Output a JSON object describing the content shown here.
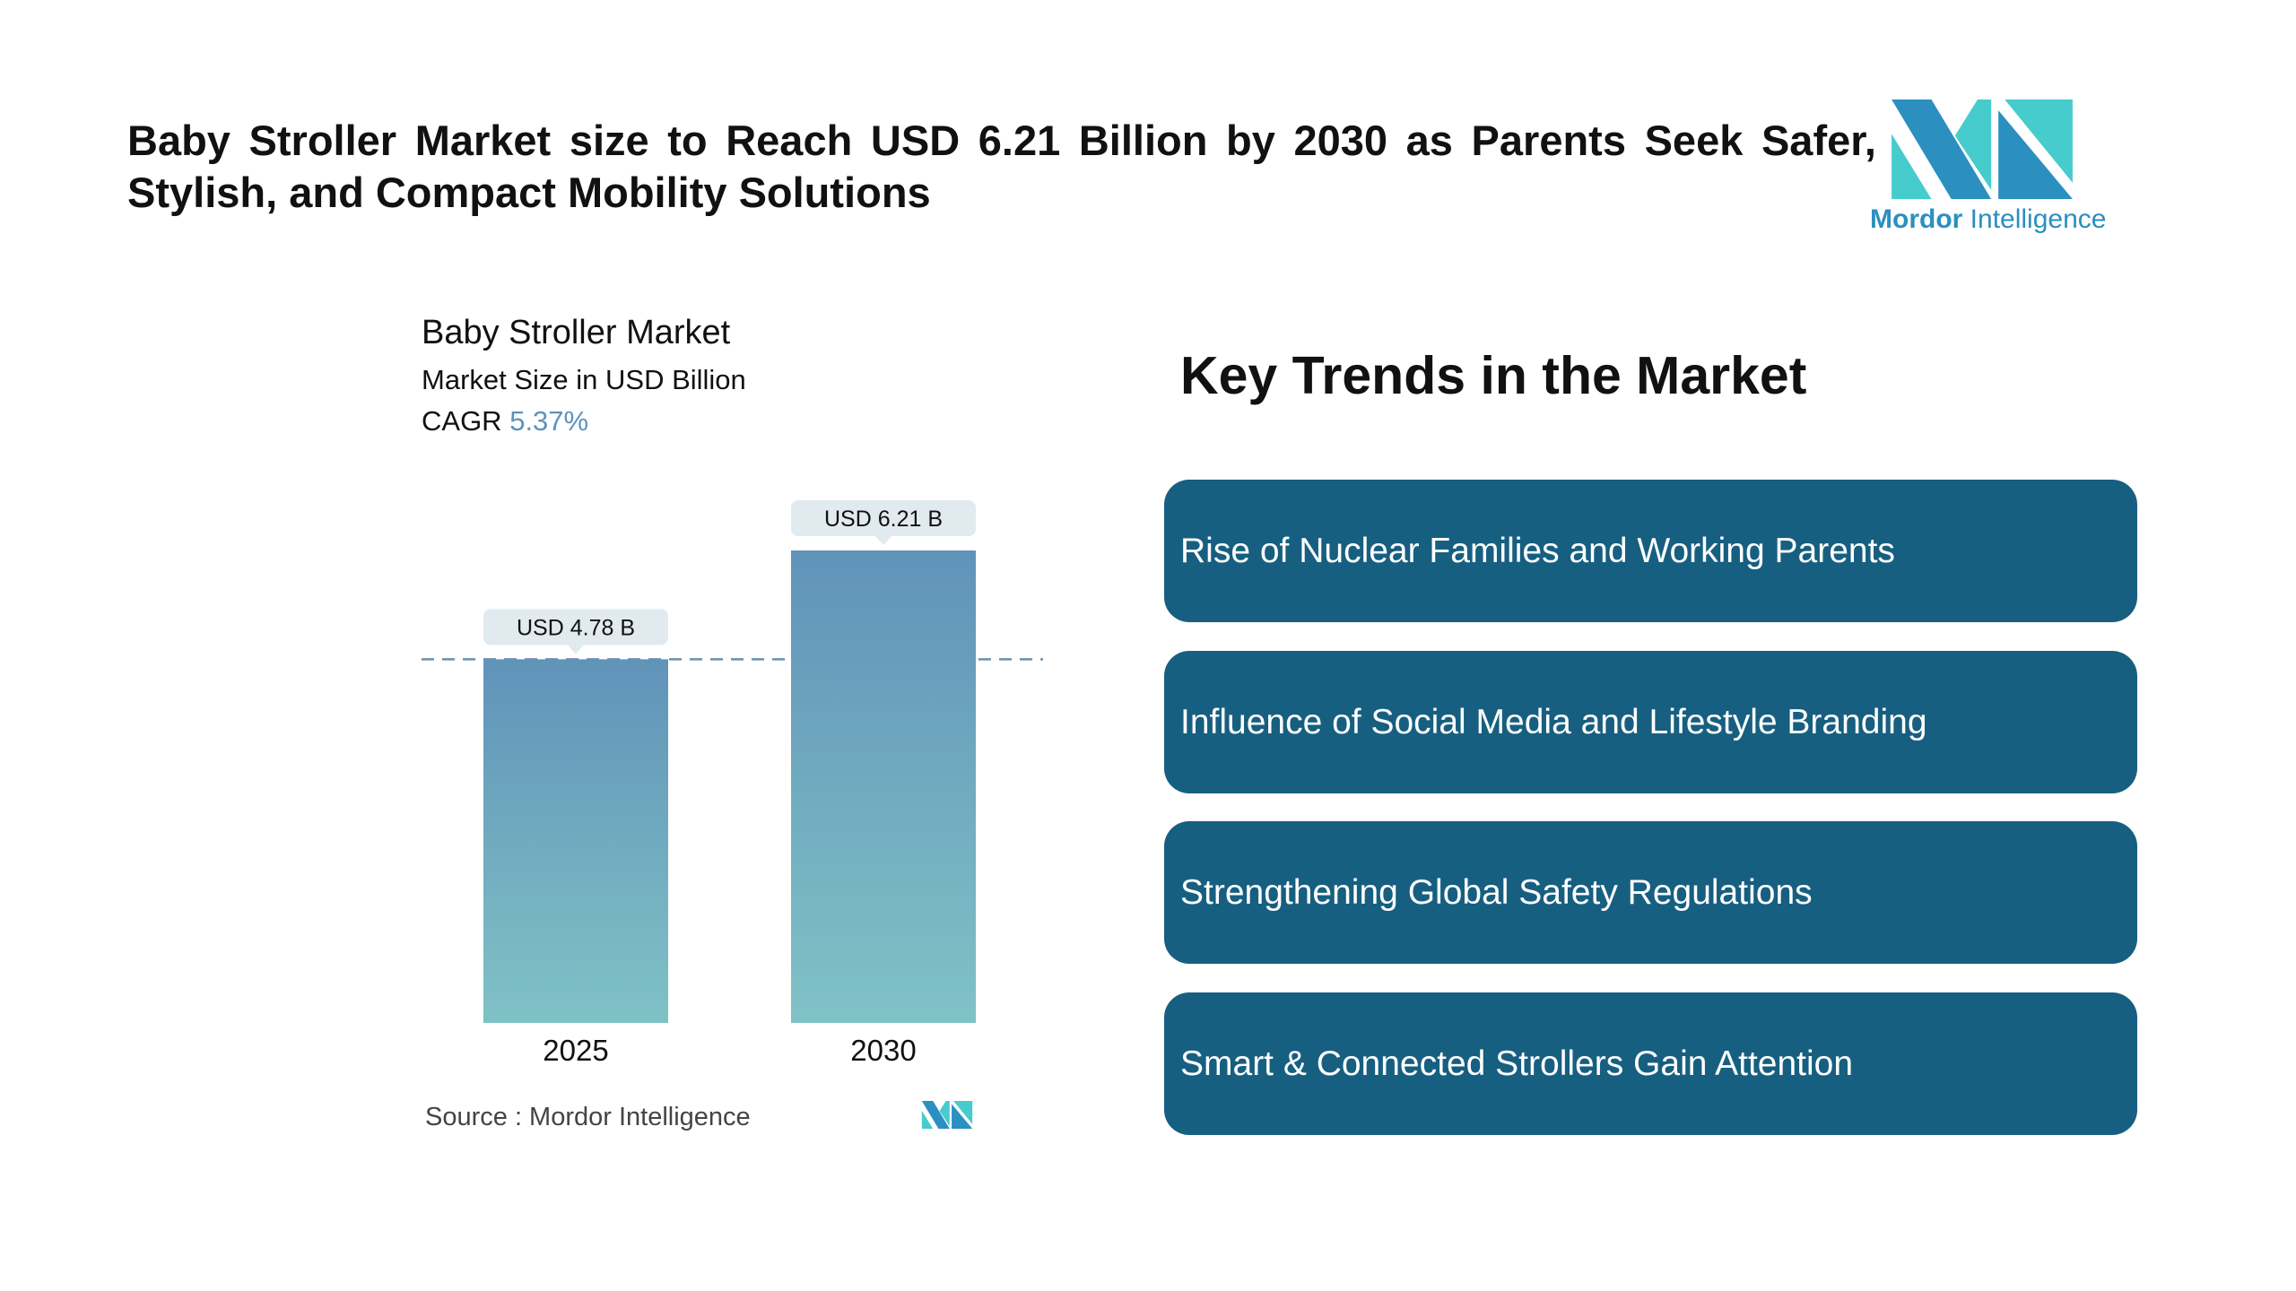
{
  "headline": "Baby Stroller Market size to Reach USD 6.21 Billion by 2030 as Parents Seek Safer, Stylish, and Compact Mobility Solutions",
  "logo": {
    "brand_bold": "Mordor",
    "brand_light": "Intelligence",
    "colors": {
      "dark": "#2b8fc0",
      "light": "#46cccd"
    }
  },
  "chart_data": {
    "type": "bar",
    "title": "Baby Stroller Market",
    "subtitle": "Market Size in USD Billion",
    "cagr_label": "CAGR",
    "cagr_value": "5.37%",
    "categories": [
      "2025",
      "2030"
    ],
    "values": [
      4.78,
      6.21
    ],
    "data_labels": [
      "USD 4.78 B",
      "USD 6.21 B"
    ],
    "reference_line": 4.78,
    "ylim": [
      0,
      6.21
    ],
    "grid": false,
    "bar_gradient": [
      "#6193b9",
      "#7fc2c6"
    ]
  },
  "source": "Source :  Mordor Intelligence",
  "trends": {
    "title": "Key Trends in the Market",
    "items": [
      "Rise of Nuclear Families and Working Parents",
      "Influence of Social Media and Lifestyle Branding",
      "Strengthening Global Safety Regulations",
      "Smart & Connected Strollers Gain Attention"
    ],
    "color": "#175f80"
  }
}
